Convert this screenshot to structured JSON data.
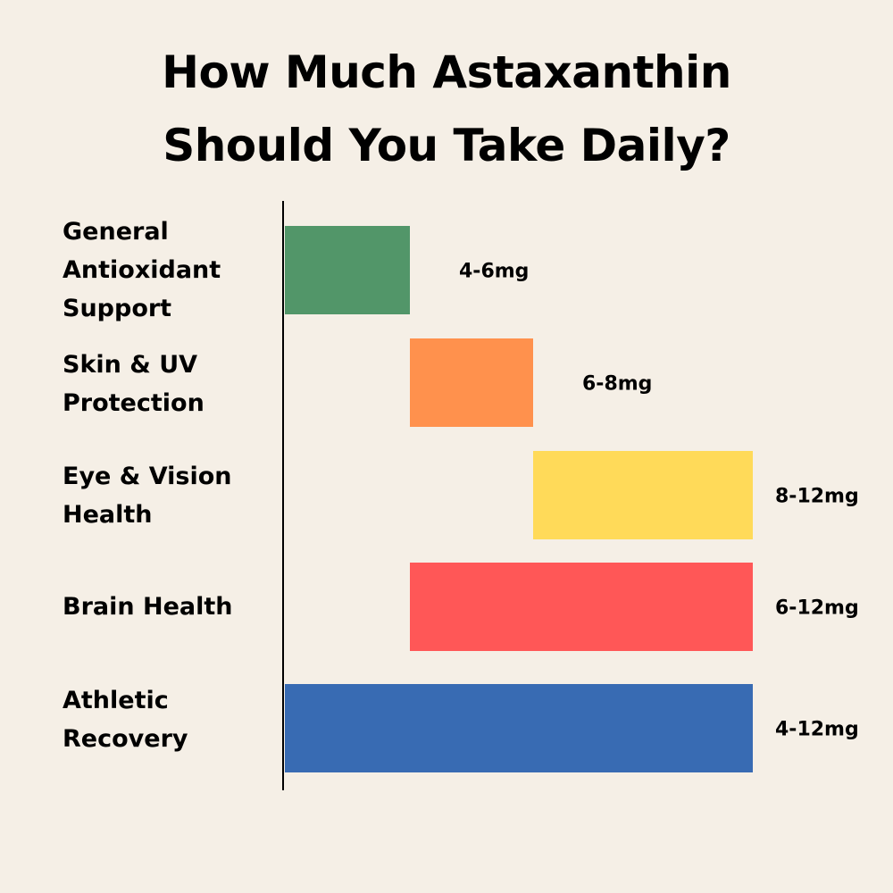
{
  "chart_data": {
    "type": "bar",
    "orientation": "horizontal-range",
    "title": "How Much Astaxanthin Should You Take Daily?",
    "title_lines": [
      "How Much Astaxanthin",
      "Should You Take Daily?"
    ],
    "unit": "mg",
    "grid": false,
    "categories": [
      "General Antioxidant Support",
      "Skin & UV Protection",
      "Eye & Vision Health",
      "Brain Health",
      "Athletic Recovery"
    ],
    "category_lines": [
      [
        "General",
        "Antioxidant",
        "Support"
      ],
      [
        "Skin & UV",
        "Protection"
      ],
      [
        "Eye & Vision",
        "Health"
      ],
      [
        "Brain Health"
      ],
      [
        "Athletic",
        "Recovery"
      ]
    ],
    "ranges": [
      [
        4,
        6
      ],
      [
        6,
        8
      ],
      [
        8,
        12
      ],
      [
        6,
        12
      ],
      [
        4,
        12
      ]
    ],
    "data_labels": [
      "4-6mg",
      "6-8mg",
      "8-12mg",
      "6-12mg",
      "4-12mg"
    ],
    "colors": [
      "#529669",
      "#FF914D",
      "#FFDA59",
      "#FF5757",
      "#386BB3"
    ],
    "background": "#F5EFE6"
  }
}
